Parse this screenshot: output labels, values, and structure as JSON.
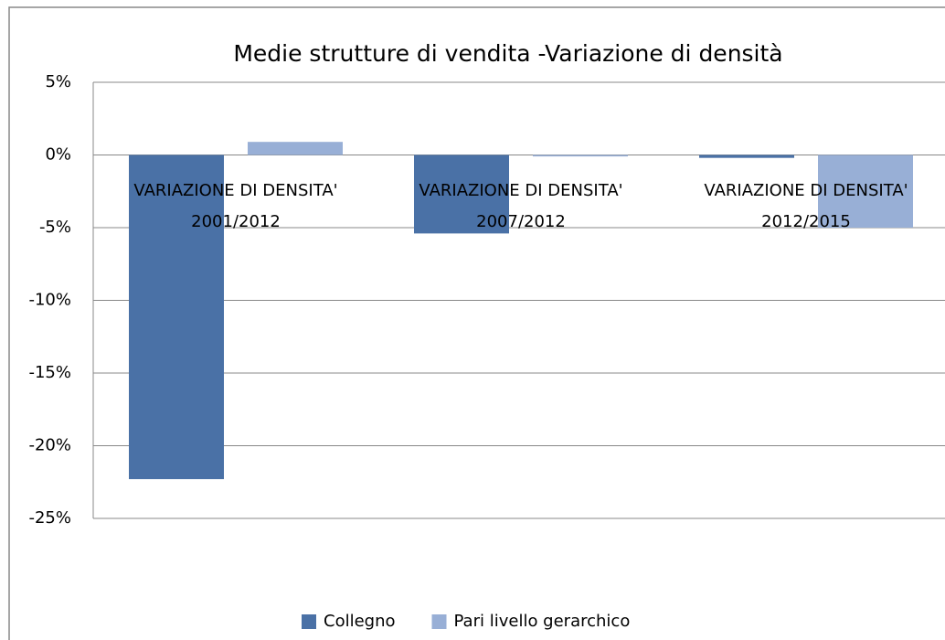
{
  "chart_data": {
    "type": "bar",
    "title": "Medie strutture di vendita -Variazione di densità",
    "categories": [
      "VARIAZIONE DI DENSITA' 2001/2012",
      "VARIAZIONE DI DENSITA' 2007/2012",
      "VARIAZIONE DI DENSITA' 2012/2015"
    ],
    "series": [
      {
        "name": "Collegno",
        "color": "#4a71a6",
        "values": [
          -22.3,
          -5.4,
          -0.2
        ]
      },
      {
        "name": "Pari livello gerarchico",
        "color": "#98afd6",
        "values": [
          0.9,
          -0.1,
          -5.0
        ]
      }
    ],
    "ylim": [
      -25,
      5
    ],
    "yticks": [
      {
        "value": -25,
        "label": "-25%"
      },
      {
        "value": -20,
        "label": "-20%"
      },
      {
        "value": -15,
        "label": "-15%"
      },
      {
        "value": -10,
        "label": "-10%"
      },
      {
        "value": -5,
        "label": "-5%"
      },
      {
        "value": 0,
        "label": "0%"
      },
      {
        "value": 5,
        "label": "5%"
      }
    ],
    "grid": true,
    "legend": "bottom"
  }
}
